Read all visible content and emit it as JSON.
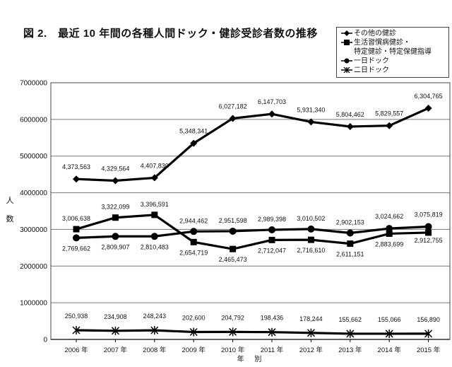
{
  "title": "図 2.　最近 10 年間の各種人間ドック・健診受診者数の推移",
  "chart_data": {
    "type": "line",
    "title": "図 2.　最近 10 年間の各種人間ドック・健診受診者数の推移",
    "xlabel": "年 別",
    "ylabel": "人 数",
    "ylim": [
      0,
      7000000
    ],
    "yticks": [
      "0",
      "1000000",
      "2000000",
      "3000000",
      "4000000",
      "5000000",
      "6000000",
      "7000000"
    ],
    "categories": [
      "2006 年",
      "2007 年",
      "2008 年",
      "2009 年",
      "2010 年",
      "2011 年",
      "2012 年",
      "2013 年",
      "2014 年",
      "2015 年"
    ],
    "grid": "horizontal",
    "legend_position": "top-right",
    "series": [
      {
        "name": "その他の健診",
        "marker": "diamond",
        "values": [
          4373563,
          4329564,
          4407830,
          5348341,
          6027182,
          6147703,
          5931340,
          5804462,
          5829557,
          6304765
        ],
        "labels": [
          "4,373,563",
          "4,329,564",
          "4,407,830",
          "5,348,341",
          "6,027,182",
          "6,147,703",
          "5,931,340",
          "5,804,462",
          "5,829,557",
          "6,304,765"
        ]
      },
      {
        "name": "生活習慣病健診・特定健診・特定保健指導",
        "marker": "square",
        "values": [
          3006638,
          3322099,
          3396591,
          2654719,
          2465473,
          2712047,
          2716610,
          2611151,
          2883699,
          2912755
        ],
        "labels": [
          "3,006,638",
          "3,322,099",
          "3,396,591",
          "2,654,719",
          "2,465,473",
          "2,712,047",
          "2,716,610",
          "2,611,151",
          "2,883,699",
          "2,912,755"
        ]
      },
      {
        "name": "一日ドック",
        "marker": "circle",
        "values": [
          2769662,
          2809907,
          2810483,
          2944462,
          2951598,
          2989398,
          3010502,
          2902153,
          3024662,
          3075819
        ],
        "labels": [
          "2,769,662",
          "2,809,907",
          "2,810,483",
          "2,944,462",
          "2,951,598",
          "2,989,398",
          "3,010,502",
          "2,902,153",
          "3,024,662",
          "3,075,819"
        ]
      },
      {
        "name": "二日ドック",
        "marker": "asterisk",
        "values": [
          250938,
          234908,
          248243,
          202600,
          204792,
          198436,
          178244,
          155662,
          155066,
          156890
        ],
        "labels": [
          "250,938",
          "234,908",
          "248,243",
          "202,600",
          "204,792",
          "198,436",
          "178,244",
          "155,662",
          "155,066",
          "156,890"
        ]
      }
    ],
    "legend": [
      "その他の健診",
      "生活習慣病健診・",
      "特定健診・特定保健指導",
      "一日ドック",
      "二日ドック"
    ]
  }
}
